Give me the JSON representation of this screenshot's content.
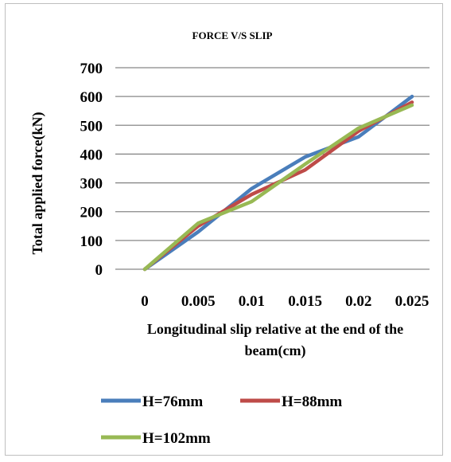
{
  "chart_data": {
    "type": "line",
    "title": "FORCE V/S SLIP",
    "xlabel": [
      "Longitudinal slip relative at the end of the",
      "beam(cm)"
    ],
    "ylabel": "Total applied force(kN)",
    "x": [
      0,
      0.005,
      0.01,
      0.015,
      0.02,
      0.025
    ],
    "x_tick_labels": [
      "0",
      "0.005",
      "0.01",
      "0.015",
      "0.02",
      "0.025"
    ],
    "y_ticks": [
      0,
      100,
      200,
      300,
      400,
      500,
      600,
      700
    ],
    "ylim": [
      0,
      700
    ],
    "grid": "horizontal",
    "legend_position": "bottom",
    "series": [
      {
        "name": "H=76mm",
        "color": "#4a7ebb",
        "values": [
          0,
          130,
          280,
          390,
          460,
          600
        ]
      },
      {
        "name": "H=88mm",
        "color": "#be4b48",
        "values": [
          0,
          150,
          260,
          345,
          480,
          580
        ]
      },
      {
        "name": "H=102mm",
        "color": "#98b954",
        "values": [
          0,
          160,
          235,
          365,
          490,
          570
        ]
      }
    ]
  }
}
